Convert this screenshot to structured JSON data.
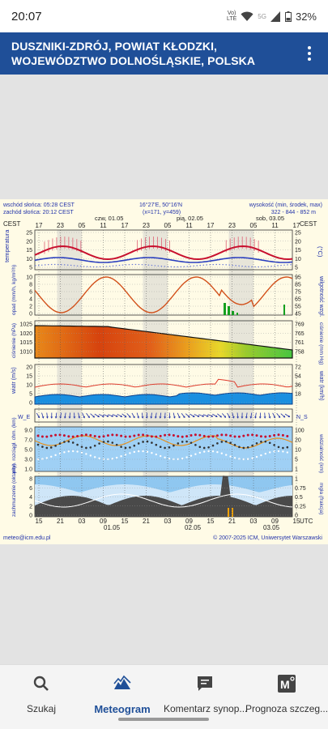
{
  "status": {
    "time": "20:07",
    "net_top": "Vo)",
    "net_bot": "LTE",
    "net2": "5G",
    "battery": "32%"
  },
  "header": {
    "title": "DUSZNIKI-ZDRÓJ, POWIAT KŁODZKI, WOJEWÓDZTWO DOLNOŚLĄSKIE, POLSKA"
  },
  "meteogram": {
    "sunrise": "wschód słońca: 05:28 CEST",
    "sunset": "zachód słońca: 20:12 CEST",
    "coords": "16°27'E, 50°16'N",
    "grid": "(x=171, y=459)",
    "elev_label": "wysokość (min, środek, max)",
    "elev_vals": "322 - 844 - 852 m",
    "tz_left": "CEST",
    "tz_right": "CEST",
    "tz_bottom": "UTC",
    "day1": "czw, 01.05",
    "day2": "pią, 02.05",
    "day3": "sob, 03.05",
    "cest_hours": [
      "17",
      "23",
      "05",
      "11",
      "17",
      "23",
      "05",
      "11",
      "17",
      "23",
      "05",
      "11",
      "17"
    ],
    "utc_hours": [
      "15",
      "21",
      "03",
      "09",
      "15",
      "21",
      "03",
      "09",
      "15",
      "21",
      "03",
      "09",
      "15"
    ],
    "date_bot1": "01.05",
    "date_bot2": "02.05",
    "date_bot3": "03.05",
    "panel_labels": {
      "temp": "temperatura",
      "temp_unit": "(°C)",
      "precip": "opad (mm/h, kg/m²/h)",
      "humid": "wilgotność wzgl.",
      "humid_unit": "(%)",
      "press": "ciśnienie (hPa)",
      "press2": "ciśnienie (mm Hg)",
      "wind": "wiatr (m/s)",
      "wind2": "wiatr (km/h)",
      "dir": "W_E",
      "dir2": "N_S",
      "cloud": "pion. rozciągł. chm. (km)",
      "vis": "widzialność (km)",
      "cover": "zachmurzenie (oktanty)",
      "fog": "mgła (frakcja)"
    },
    "temp_ticks": [
      "25",
      "20",
      "15",
      "10",
      "5"
    ],
    "precip_ticks": [
      "10",
      "8",
      "6",
      "4",
      "2",
      "0"
    ],
    "humid_ticks": [
      "95",
      "85",
      "75",
      "65",
      "55",
      "45"
    ],
    "press_ticks": [
      "1025",
      "1020",
      "1015",
      "1010"
    ],
    "press_ticks2": [
      "769",
      "765",
      "761",
      "758"
    ],
    "wind_ticks": [
      "20",
      "15",
      "10",
      "5",
      "0"
    ],
    "wind_ticks2": [
      "72",
      "54",
      "36",
      "18"
    ],
    "cloud_ticks": [
      "9.0",
      "7.0",
      "5.0",
      "3.0",
      "1.0"
    ],
    "vis_ticks": [
      "100",
      "20",
      "10",
      "5",
      "1"
    ],
    "cover_ticks": [
      "8",
      "6",
      "4",
      "2",
      "0"
    ],
    "fog_ticks": [
      "1",
      "0.75",
      "0.5",
      "0.25",
      "0"
    ],
    "footer_left": "meteo@icm.edu.pl",
    "footer_right": "© 2007-2025 ICM, Uniwersytet Warszawski"
  },
  "nav": [
    {
      "label": "Szukaj",
      "icon": "search-icon"
    },
    {
      "label": "Meteogram",
      "icon": "mountain-chart-icon"
    },
    {
      "label": "Komentarz synop...",
      "icon": "comment-icon"
    },
    {
      "label": "Prognoza szczeg...",
      "icon": "m-degree-icon"
    }
  ]
}
